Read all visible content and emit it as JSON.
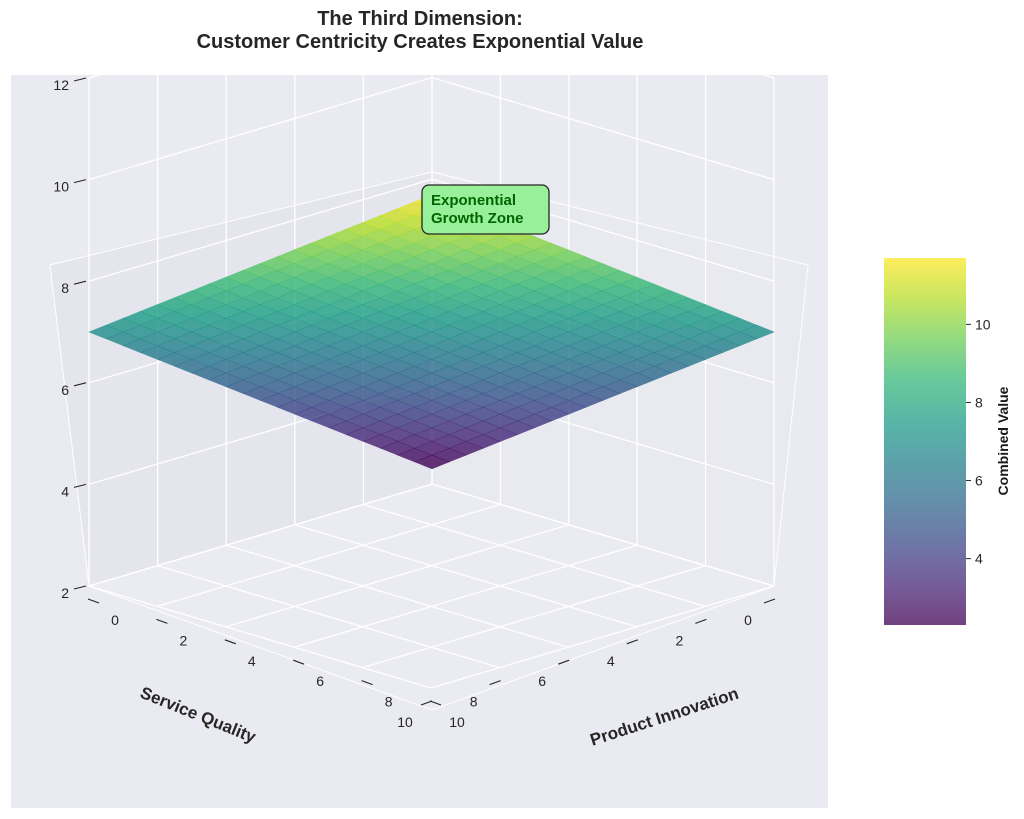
{
  "chart_data": {
    "type": "surface3d",
    "title_line1": "The Third Dimension:",
    "title_line2": "Customer Centricity Creates Exponential Value",
    "xlabel": "Product Innovation",
    "ylabel": "Service Quality",
    "colorbar_label": "Combined Value",
    "x_ticks": [
      0,
      2,
      4,
      6,
      8,
      10
    ],
    "y_ticks": [
      0,
      2,
      4,
      6,
      8,
      10
    ],
    "z_ticks": [
      2,
      4,
      6,
      8,
      10,
      12
    ],
    "colorbar_ticks": [
      4,
      6,
      8,
      10
    ],
    "zlim": [
      2,
      12
    ],
    "colorbar_range": [
      2.3,
      11.7
    ],
    "colormap": "viridis",
    "grid": true,
    "surface_corners": {
      "x0_y0": 2.3,
      "x10_y0": 7.0,
      "x0_y10": 7.0,
      "x10_y10": 11.7
    },
    "annotation": "Exponential\nGrowth Zone",
    "annotation_line1": "Exponential",
    "annotation_line2": "Growth Zone",
    "colors": {
      "pane_background": "#eaeaf2",
      "annotation_fill": "#98f09a",
      "annotation_text": "#006400"
    }
  }
}
